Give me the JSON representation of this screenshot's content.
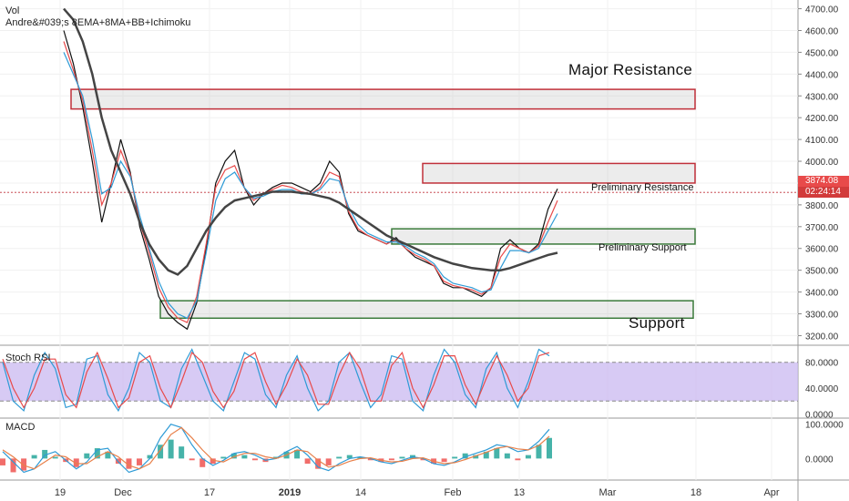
{
  "chart_data": [
    {
      "type": "line",
      "panel": "price",
      "legend": {
        "symbol": "Vol",
        "study": "Andre&#039;s 8EMA+8MA+BB+Ichimoku"
      },
      "x_ticks": [
        "19",
        "Dec",
        "17",
        "2019",
        "14",
        "Feb",
        "13",
        "Mar",
        "18",
        "Apr"
      ],
      "y_ticks": [
        "3200.00",
        "3300.00",
        "3400.00",
        "3500.00",
        "3600.00",
        "3700.00",
        "3800.00",
        "3900.00",
        "4000.00",
        "4100.00",
        "4200.00",
        "4300.00",
        "4400.00",
        "4500.00",
        "4600.00",
        "4700.00"
      ],
      "ylim": [
        3160,
        4740
      ],
      "last_price": "3874.08",
      "countdown": "02:24:14",
      "annotations": [
        {
          "text": "Major Resistance",
          "low": 4240,
          "high": 4330,
          "color": "#c0303a"
        },
        {
          "text": "Preliminary Resistance",
          "low": 3900,
          "high": 3990,
          "color": "#c0303a"
        },
        {
          "text": "Preliminary Support",
          "low": 3620,
          "high": 3690,
          "color": "#3a7a3a"
        },
        {
          "text": "Support",
          "low": 3280,
          "high": 3360,
          "color": "#3a7a3a"
        }
      ],
      "series": [
        {
          "color": "#111111",
          "values": [
            4600,
            4450,
            4250,
            4000,
            3720,
            3900,
            4100,
            3950,
            3700,
            3550,
            3380,
            3300,
            3260,
            3230,
            3350,
            3600,
            3900,
            4000,
            4050,
            3880,
            3800,
            3850,
            3880,
            3900,
            3900,
            3880,
            3860,
            3900,
            4000,
            3950,
            3760,
            3680,
            3660,
            3640,
            3620,
            3650,
            3600,
            3560,
            3540,
            3520,
            3440,
            3420,
            3420,
            3400,
            3380,
            3420,
            3600,
            3640,
            3600,
            3580,
            3620,
            3780,
            3874
          ]
        },
        {
          "color": "#e84a4a",
          "values": [
            4550,
            4420,
            4280,
            4050,
            3800,
            3900,
            4050,
            3940,
            3720,
            3580,
            3420,
            3330,
            3280,
            3260,
            3380,
            3620,
            3880,
            3960,
            3980,
            3880,
            3820,
            3850,
            3870,
            3890,
            3880,
            3860,
            3850,
            3880,
            3950,
            3930,
            3770,
            3690,
            3660,
            3640,
            3620,
            3640,
            3600,
            3570,
            3550,
            3520,
            3450,
            3430,
            3420,
            3410,
            3390,
            3420,
            3560,
            3620,
            3600,
            3580,
            3610,
            3720,
            3820
          ]
        },
        {
          "color": "#2f9bd6",
          "values": [
            4500,
            4400,
            4300,
            4100,
            3850,
            3880,
            4000,
            3930,
            3750,
            3600,
            3450,
            3350,
            3300,
            3280,
            3360,
            3580,
            3820,
            3920,
            3950,
            3880,
            3830,
            3840,
            3860,
            3870,
            3870,
            3850,
            3850,
            3870,
            3920,
            3910,
            3790,
            3710,
            3670,
            3650,
            3630,
            3630,
            3610,
            3580,
            3560,
            3530,
            3470,
            3440,
            3430,
            3420,
            3400,
            3410,
            3510,
            3590,
            3590,
            3580,
            3600,
            3680,
            3760
          ]
        },
        {
          "color": "#444444",
          "values": [
            4700,
            4650,
            4550,
            4400,
            4200,
            4050,
            3950,
            3850,
            3720,
            3620,
            3550,
            3500,
            3480,
            3520,
            3600,
            3680,
            3740,
            3790,
            3820,
            3830,
            3840,
            3850,
            3860,
            3860,
            3860,
            3855,
            3850,
            3840,
            3830,
            3810,
            3780,
            3750,
            3720,
            3690,
            3660,
            3640,
            3620,
            3600,
            3580,
            3560,
            3545,
            3530,
            3520,
            3510,
            3505,
            3500,
            3500,
            3510,
            3525,
            3540,
            3555,
            3570,
            3580
          ]
        }
      ]
    },
    {
      "type": "line",
      "panel": "stoch_rsi",
      "title": "Stoch RSI",
      "y_ticks": [
        "0.0000",
        "40.0000",
        "80.0000"
      ],
      "ylim": [
        -5,
        105
      ],
      "band": [
        20,
        80
      ],
      "series": [
        {
          "color": "#2f9bd6",
          "values": [
            80,
            20,
            5,
            60,
            95,
            70,
            10,
            15,
            85,
            90,
            30,
            5,
            40,
            95,
            80,
            20,
            10,
            70,
            100,
            60,
            20,
            5,
            50,
            95,
            85,
            30,
            10,
            60,
            90,
            40,
            5,
            20,
            80,
            95,
            50,
            10,
            30,
            90,
            85,
            20,
            5,
            60,
            100,
            80,
            30,
            10,
            70,
            95,
            40,
            10,
            50,
            100,
            90
          ]
        },
        {
          "color": "#e84a4a",
          "values": [
            85,
            40,
            10,
            40,
            85,
            85,
            30,
            10,
            65,
            95,
            55,
            10,
            25,
            80,
            90,
            40,
            10,
            50,
            95,
            80,
            35,
            10,
            35,
            85,
            95,
            50,
            15,
            45,
            85,
            60,
            15,
            15,
            60,
            95,
            70,
            20,
            20,
            75,
            95,
            40,
            10,
            45,
            90,
            90,
            45,
            15,
            55,
            90,
            60,
            20,
            40,
            90,
            95
          ]
        }
      ]
    },
    {
      "type": "bar",
      "panel": "macd",
      "title": "MACD",
      "y_ticks": [
        "0.0000",
        "100.0000"
      ],
      "ylim": [
        -60,
        115
      ],
      "histogram": [
        -20,
        -40,
        -35,
        10,
        25,
        5,
        -10,
        -25,
        15,
        30,
        20,
        -15,
        -30,
        -20,
        10,
        40,
        55,
        35,
        -5,
        -25,
        -15,
        5,
        15,
        10,
        -5,
        -10,
        5,
        20,
        25,
        -15,
        -30,
        -20,
        5,
        10,
        5,
        -5,
        -10,
        -5,
        5,
        10,
        -5,
        -15,
        -10,
        5,
        15,
        10,
        20,
        30,
        15,
        -5,
        10,
        40,
        60
      ],
      "series": [
        {
          "color": "#2f9bd6",
          "values": [
            20,
            -10,
            -40,
            -30,
            10,
            20,
            -5,
            -30,
            -10,
            25,
            30,
            -10,
            -40,
            -30,
            0,
            60,
            100,
            90,
            40,
            0,
            -20,
            -5,
            15,
            20,
            10,
            -5,
            0,
            20,
            35,
            10,
            -25,
            -35,
            -15,
            0,
            5,
            0,
            -10,
            -15,
            -5,
            5,
            0,
            -15,
            -20,
            -10,
            5,
            15,
            25,
            40,
            35,
            20,
            25,
            50,
            85
          ]
        },
        {
          "color": "#e8804a",
          "values": [
            25,
            5,
            -20,
            -30,
            -10,
            10,
            5,
            -15,
            -15,
            5,
            20,
            5,
            -20,
            -30,
            -15,
            25,
            70,
            90,
            60,
            25,
            -5,
            -10,
            5,
            15,
            15,
            5,
            0,
            10,
            25,
            20,
            -5,
            -25,
            -20,
            -8,
            0,
            2,
            -5,
            -10,
            -8,
            0,
            2,
            -8,
            -15,
            -12,
            -3,
            8,
            18,
            30,
            35,
            28,
            25,
            38,
            65
          ]
        }
      ]
    }
  ]
}
